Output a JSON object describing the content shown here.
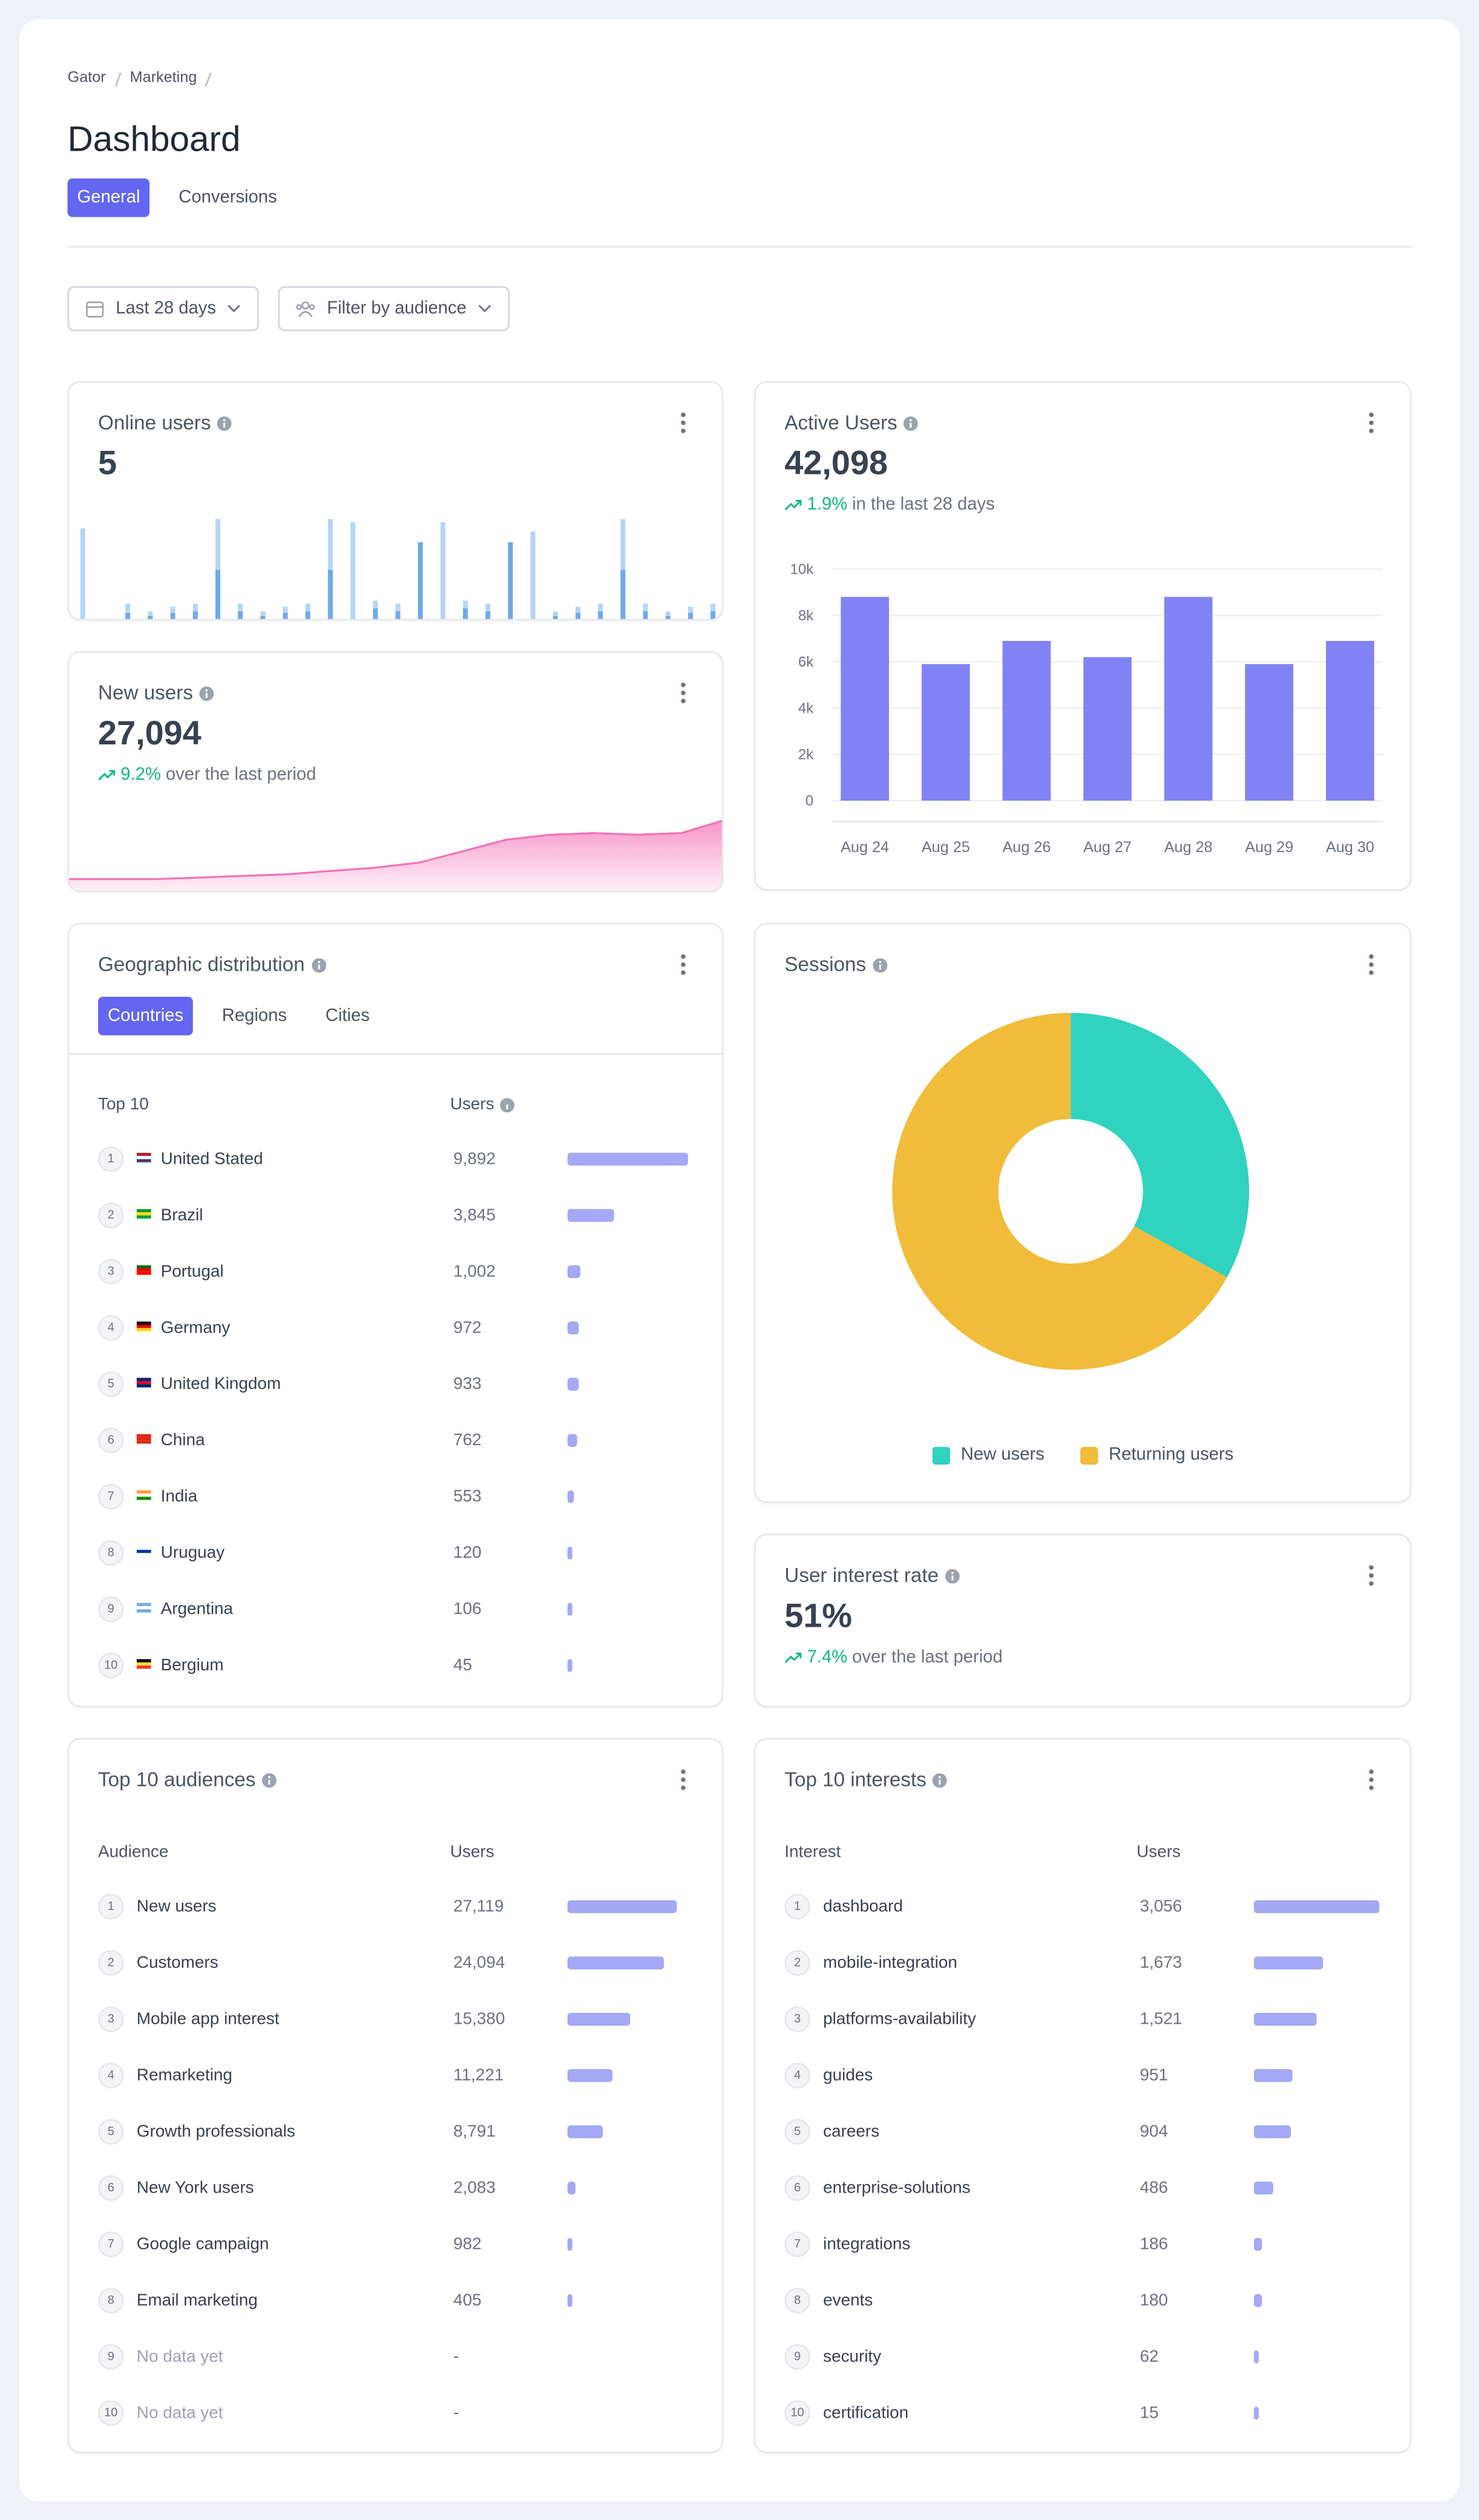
{
  "breadcrumb": [
    "Gator",
    "Marketing"
  ],
  "header": {
    "title": "Dashboard"
  },
  "tabs": [
    "General",
    "Conversions"
  ],
  "filters": [
    "Last 28 days",
    "Filter by audience"
  ],
  "cards": {
    "online_users": {
      "title": "Online users",
      "value": "5"
    },
    "new_users": {
      "title": "New users",
      "value": "27,094",
      "change": "9.2%",
      "change_text": "over the last period"
    },
    "active_users": {
      "title": "Active Users",
      "value": "42,098",
      "change": "1.9%",
      "change_text": "in the last 28 days"
    },
    "geo": {
      "title": "Geographic distribution",
      "tabs": [
        "Countries",
        "Regions",
        "Cities"
      ],
      "columns": [
        "Top 10",
        "Users"
      ],
      "ranks": [
        1,
        2,
        3,
        4,
        5,
        6,
        7,
        8,
        9,
        10
      ],
      "names": [
        "United Stated",
        "Brazil",
        "Portugal",
        "Germany",
        "United Kingdom",
        "China",
        "India",
        "Uruguay",
        "Argentina",
        "Bergium"
      ],
      "values": [
        9892,
        3845,
        1002,
        972,
        933,
        762,
        553,
        120,
        106,
        45
      ],
      "value_labels": [
        "9,892",
        "3,845",
        "1,002",
        "972",
        "933",
        "762",
        "553",
        "120",
        "106",
        "45"
      ]
    },
    "sessions": {
      "title": "Sessions"
    },
    "interest_rate": {
      "title": "User interest rate",
      "value": "51%",
      "change": "7.4%",
      "change_text": "over the last period"
    },
    "audiences": {
      "title": "Top 10 audiences",
      "columns": [
        "Audience",
        "Users"
      ],
      "ranks": [
        1,
        2,
        3,
        4,
        5,
        6,
        7,
        8,
        9,
        10
      ],
      "names": [
        "New users",
        "Customers",
        "Mobile app interest",
        "Remarketing",
        "Growth professionals",
        "New York users",
        "Google campaign",
        "Email marketing",
        "No data yet",
        "No data yet"
      ],
      "values": [
        27119,
        24094,
        15380,
        11221,
        8791,
        2083,
        982,
        405,
        null,
        null
      ],
      "value_labels": [
        "27,119",
        "24,094",
        "15,380",
        "11,221",
        "8,791",
        "2,083",
        "982",
        "405",
        "-",
        "-"
      ]
    },
    "interests": {
      "title": "Top 10 interests",
      "columns": [
        "Interest",
        "Users"
      ],
      "ranks": [
        1,
        2,
        3,
        4,
        5,
        6,
        7,
        8,
        9,
        10
      ],
      "names": [
        "dashboard",
        "mobile-integration",
        "platforms-availability",
        "guides",
        "careers",
        "enterprise-solutions",
        "integrations",
        "events",
        "security",
        "certification"
      ],
      "values": [
        3056,
        1673,
        1521,
        951,
        904,
        486,
        186,
        180,
        62,
        15
      ],
      "value_labels": [
        "3,056",
        "1,673",
        "1,521",
        "951",
        "904",
        "486",
        "186",
        "180",
        "62",
        "15"
      ]
    }
  },
  "chart_data": [
    {
      "type": "bar",
      "ylim": [
        0,
        70
      ],
      "series": [
        {
          "color": "#b5d5f6",
          "values": [
            61,
            12,
            7,
            10,
            12,
            67,
            12,
            7,
            10,
            12,
            67,
            65,
            14,
            12,
            52,
            65,
            14,
            12,
            52,
            59,
            7,
            10,
            12,
            67,
            12,
            7,
            10,
            12
          ]
        },
        {
          "color": "#6eaae8",
          "values": [
            0,
            6,
            4,
            6,
            7,
            34,
            7,
            4,
            6,
            7,
            34,
            0,
            9,
            7,
            52,
            0,
            9,
            7,
            52,
            0,
            4,
            6,
            7,
            34,
            7,
            4,
            6,
            7
          ]
        }
      ]
    },
    {
      "type": "area",
      "color": "#f472b6",
      "ylim": [
        0,
        45
      ],
      "values": [
        7,
        7,
        7,
        8,
        9,
        10,
        12,
        14,
        17,
        24,
        31,
        34,
        35,
        34,
        35,
        43
      ]
    },
    {
      "type": "bar",
      "color": "#8183f4",
      "grid": true,
      "categories": [
        "Aug 24",
        "Aug 25",
        "Aug 26",
        "Aug 27",
        "Aug 28",
        "Aug 29",
        "Aug 30"
      ],
      "values": [
        8800,
        5900,
        6900,
        6200,
        8800,
        5900,
        6900
      ],
      "ylim": [
        0,
        10000
      ],
      "yticks": [
        0,
        {
          "value": 2000,
          "label": "2k"
        },
        {
          "value": 4000,
          "label": "4k"
        },
        {
          "value": 6000,
          "label": "6k"
        },
        {
          "value": 8000,
          "label": "8k"
        },
        {
          "value": 10000,
          "label": "10k"
        }
      ]
    },
    {
      "type": "pie",
      "categories": [
        "New users",
        "Returning users"
      ],
      "values": [
        33,
        67
      ],
      "colors": [
        "#2fd3c0",
        "#f0bc3a"
      ]
    }
  ]
}
